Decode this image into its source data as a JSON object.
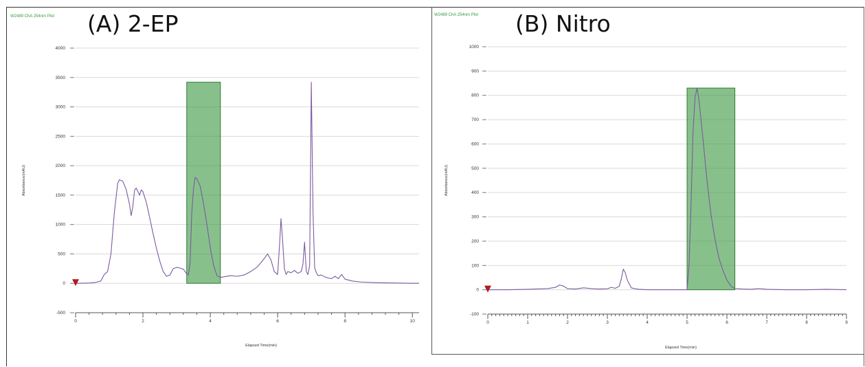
{
  "panels": [
    {
      "title": "(A) 2-EP",
      "caption": "W2489 ChA 254nm Plot"
    },
    {
      "title": "(B) Nitro",
      "caption": "W2489 ChA 254nm Plot"
    }
  ],
  "colors": {
    "trace": "#7a5a9e",
    "highlight_fill": "#3f9a45",
    "highlight_stroke": "#2f7a34",
    "grid": "#d9d9d9",
    "start_marker": "#b01c1c"
  },
  "chart_data": [
    {
      "type": "line",
      "xlabel": "Elapsed Time(min)",
      "ylabel": "Absorbance(mAU)",
      "xlim": [
        0,
        10.2
      ],
      "ylim": [
        -500,
        4000
      ],
      "xticks": [
        0,
        2,
        4,
        6,
        8,
        10
      ],
      "yticks": [
        -500,
        0,
        500,
        1000,
        1500,
        2000,
        2500,
        3000,
        3500,
        4000
      ],
      "grid": true,
      "highlight": {
        "x_start": 3.3,
        "x_end": 4.3,
        "y_top": 3420
      },
      "series": [
        {
          "x": [
            0,
            0.2,
            0.4,
            0.6,
            0.75,
            0.85,
            0.95,
            1.05,
            1.15,
            1.25,
            1.3,
            1.4,
            1.5,
            1.6,
            1.65,
            1.7,
            1.75,
            1.8,
            1.85,
            1.9,
            1.95,
            2.0,
            2.1,
            2.2,
            2.3,
            2.4,
            2.5,
            2.6,
            2.7,
            2.8,
            2.9,
            3.0,
            3.1,
            3.2,
            3.3,
            3.35,
            3.4,
            3.45,
            3.5,
            3.55,
            3.6,
            3.7,
            3.8,
            3.9,
            4.0,
            4.1,
            4.2,
            4.3,
            4.4,
            4.6,
            4.8,
            5.0,
            5.2,
            5.4,
            5.6,
            5.7,
            5.8,
            5.9,
            6.0,
            6.05,
            6.1,
            6.15,
            6.2,
            6.25,
            6.3,
            6.4,
            6.5,
            6.6,
            6.7,
            6.75,
            6.8,
            6.85,
            6.9,
            6.95,
            7.0,
            7.05,
            7.1,
            7.15,
            7.2,
            7.3,
            7.4,
            7.5,
            7.6,
            7.7,
            7.8,
            7.9,
            8.0,
            8.2,
            8.5,
            9.0,
            9.5,
            10.0,
            10.2
          ],
          "y": [
            0,
            2,
            5,
            15,
            40,
            150,
            200,
            500,
            1200,
            1700,
            1760,
            1740,
            1600,
            1350,
            1150,
            1300,
            1580,
            1620,
            1560,
            1500,
            1590,
            1560,
            1380,
            1120,
            850,
            600,
            380,
            200,
            120,
            140,
            250,
            270,
            260,
            240,
            160,
            140,
            350,
            1200,
            1600,
            1800,
            1780,
            1650,
            1350,
            1000,
            600,
            300,
            130,
            100,
            110,
            130,
            120,
            140,
            200,
            280,
            420,
            500,
            400,
            200,
            150,
            600,
            1100,
            700,
            250,
            150,
            200,
            180,
            220,
            170,
            200,
            320,
            700,
            200,
            150,
            300,
            3420,
            1200,
            260,
            180,
            130,
            140,
            110,
            90,
            80,
            120,
            80,
            150,
            70,
            40,
            20,
            10,
            5,
            0,
            0
          ]
        }
      ]
    },
    {
      "type": "line",
      "xlabel": "Elapsed Time(min)",
      "ylabel": "Absorbance(mAU)",
      "xlim": [
        0,
        9
      ],
      "ylim": [
        -100,
        1000
      ],
      "xticks": [
        0,
        1,
        2,
        3,
        4,
        5,
        6,
        7,
        8,
        9
      ],
      "yticks": [
        -100,
        0,
        100,
        200,
        300,
        400,
        500,
        600,
        700,
        800,
        900,
        1000
      ],
      "grid": true,
      "highlight": {
        "x_start": 5.0,
        "x_end": 6.2,
        "y_top": 830
      },
      "series": [
        {
          "x": [
            0,
            0.5,
            1.0,
            1.5,
            1.7,
            1.8,
            1.9,
            2.0,
            2.2,
            2.4,
            2.6,
            2.8,
            3.0,
            3.1,
            3.2,
            3.3,
            3.35,
            3.4,
            3.45,
            3.5,
            3.6,
            3.7,
            3.8,
            4.0,
            4.5,
            4.8,
            5.0,
            5.05,
            5.1,
            5.15,
            5.2,
            5.25,
            5.3,
            5.4,
            5.5,
            5.6,
            5.7,
            5.8,
            5.9,
            6.0,
            6.1,
            6.2,
            6.4,
            6.6,
            6.8,
            7.0,
            7.5,
            8.0,
            8.5,
            9.0
          ],
          "y": [
            0,
            0,
            2,
            5,
            10,
            20,
            15,
            5,
            3,
            8,
            5,
            3,
            4,
            10,
            6,
            15,
            45,
            85,
            70,
            40,
            8,
            4,
            2,
            0,
            0,
            0,
            0,
            100,
            350,
            650,
            790,
            830,
            780,
            620,
            450,
            310,
            210,
            130,
            80,
            40,
            15,
            5,
            3,
            2,
            5,
            2,
            0,
            0,
            2,
            0
          ]
        }
      ]
    }
  ]
}
